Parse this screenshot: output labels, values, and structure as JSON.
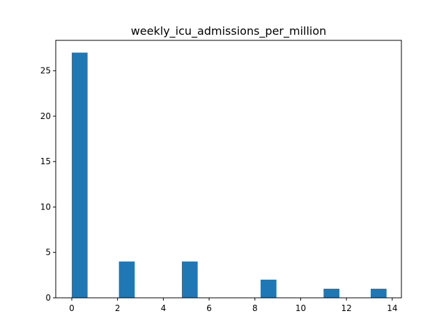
{
  "chart_data": {
    "type": "bar",
    "title": "weekly_icu_admissions_per_million",
    "xlabel": "",
    "ylabel": "",
    "xlim": [
      -0.7,
      14.4
    ],
    "ylim": [
      0,
      28.35
    ],
    "xticks": [
      0,
      2,
      4,
      6,
      8,
      10,
      12,
      14
    ],
    "yticks": [
      0,
      5,
      10,
      15,
      20,
      25
    ],
    "bars": [
      {
        "x0": 0.0,
        "x1": 0.69,
        "value": 27
      },
      {
        "x0": 2.06,
        "x1": 2.75,
        "value": 4
      },
      {
        "x0": 4.81,
        "x1": 5.5,
        "value": 4
      },
      {
        "x0": 8.25,
        "x1": 8.94,
        "value": 2
      },
      {
        "x0": 11.0,
        "x1": 11.69,
        "value": 1
      },
      {
        "x0": 13.06,
        "x1": 13.75,
        "value": 1
      }
    ],
    "bar_color": "#1f77b4",
    "grid": false,
    "legend": "none"
  }
}
